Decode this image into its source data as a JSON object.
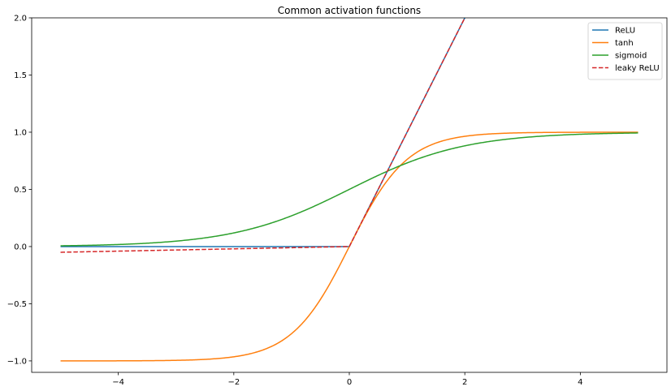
{
  "chart_data": {
    "type": "line",
    "title": "Common activation functions",
    "xlabel": "",
    "ylabel": "",
    "xlim": [
      -5.5,
      5.5
    ],
    "ylim": [
      -1.1,
      2.0
    ],
    "x_range": [
      -5,
      5
    ],
    "x_ticks": [
      -4,
      -2,
      0,
      2,
      4
    ],
    "x_tick_labels": [
      "−4",
      "−2",
      "0",
      "2",
      "4"
    ],
    "y_ticks": [
      -1.0,
      -0.5,
      0.0,
      0.5,
      1.0,
      1.5,
      2.0
    ],
    "y_tick_labels": [
      "−1.0",
      "−0.5",
      "0.0",
      "0.5",
      "1.0",
      "1.5",
      "2.0"
    ],
    "grid": false,
    "legend_position": "top-right",
    "series": [
      {
        "name": "ReLU",
        "function": "max(0, x)",
        "color": "#1f77b4",
        "dash": "solid"
      },
      {
        "name": "tanh",
        "function": "tanh(x)",
        "color": "#ff7f0e",
        "dash": "solid"
      },
      {
        "name": "sigmoid",
        "function": "1 / (1 + exp(-x))",
        "color": "#2ca02c",
        "dash": "solid"
      },
      {
        "name": "leaky ReLU",
        "function": "max(0.01x, x)",
        "color": "#d62728",
        "dash": "dashed"
      }
    ]
  }
}
